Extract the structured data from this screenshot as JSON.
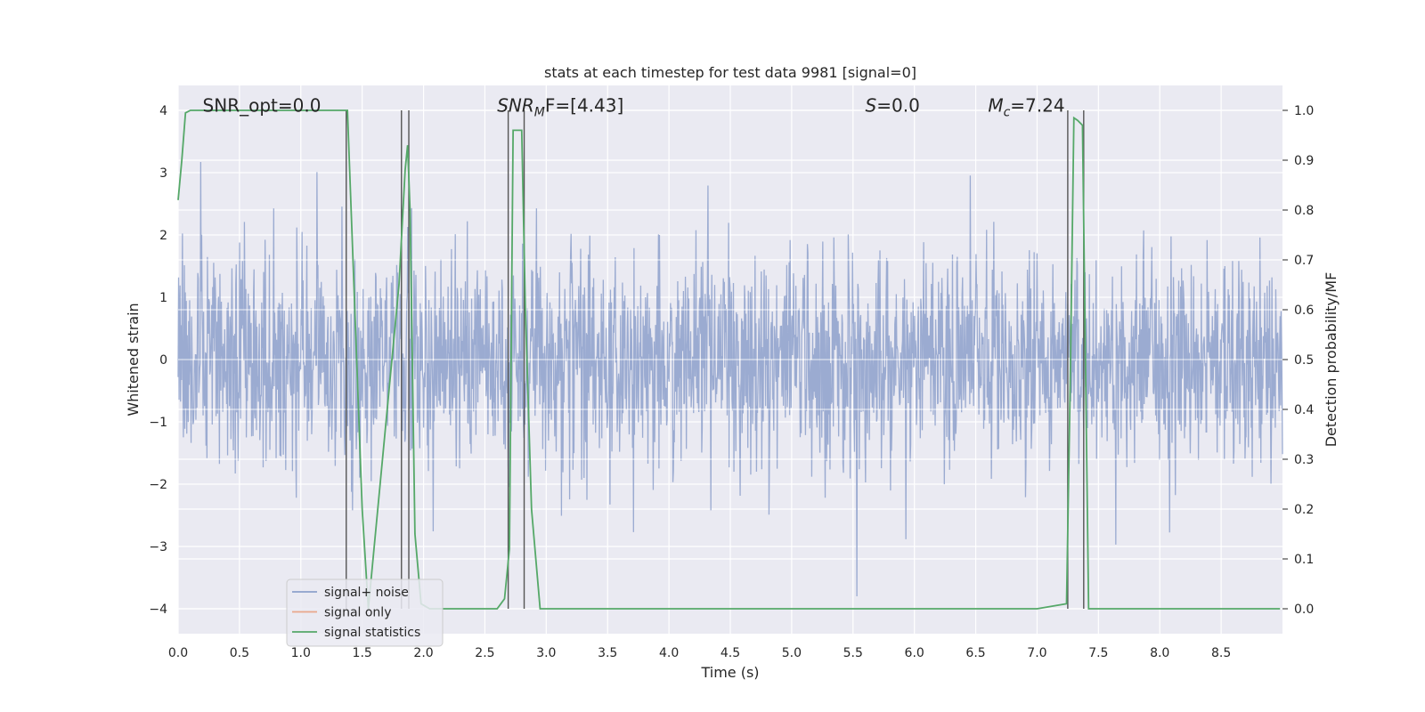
{
  "chart_data": {
    "type": "line",
    "title": "stats at each timestep for test data 9981 [signal=0]",
    "xlabel": "Time (s)",
    "ylabel": "Whitened strain",
    "y2label": "Detection probability/MF",
    "xlim": [
      0,
      9.0
    ],
    "ylim": [
      -4.4,
      4.4
    ],
    "y2lim": [
      -0.05,
      1.05
    ],
    "xticks": [
      "0.0",
      "0.5",
      "1.0",
      "1.5",
      "2.0",
      "2.5",
      "3.0",
      "3.5",
      "4.0",
      "4.5",
      "5.0",
      "5.5",
      "6.0",
      "6.5",
      "7.0",
      "7.5",
      "8.0",
      "8.5"
    ],
    "xtick_values": [
      0,
      0.5,
      1,
      1.5,
      2,
      2.5,
      3,
      3.5,
      4,
      4.5,
      5,
      5.5,
      6,
      6.5,
      7,
      7.5,
      8,
      8.5
    ],
    "yticks": [
      "−4",
      "−3",
      "−2",
      "−1",
      "0",
      "1",
      "2",
      "3",
      "4"
    ],
    "ytick_values": [
      -4,
      -3,
      -2,
      -1,
      0,
      1,
      2,
      3,
      4
    ],
    "y2ticks": [
      "0.0",
      "0.1",
      "0.2",
      "0.3",
      "0.4",
      "0.5",
      "0.6",
      "0.7",
      "0.8",
      "0.9",
      "1.0"
    ],
    "y2tick_values": [
      0,
      0.1,
      0.2,
      0.3,
      0.4,
      0.5,
      0.6,
      0.7,
      0.8,
      0.9,
      1.0
    ],
    "grid": true,
    "legend_position": "lower-left",
    "annotations": [
      {
        "text": "SNR_opt=0.0",
        "x": 0.2,
        "y": 4.05
      },
      {
        "text": "SNR_MF=[4.43]",
        "x": 2.6,
        "y": 4.05,
        "math": "SNR",
        "sub": "M",
        "rest": "F=[4.43]"
      },
      {
        "text": "S=0.0",
        "x": 5.6,
        "y": 4.05,
        "math": "S",
        "rest": "=0.0"
      },
      {
        "text": "M_c=7.24",
        "x": 6.6,
        "y": 4.05,
        "math": "M",
        "sub": "c",
        "rest": "=7.24"
      }
    ],
    "series": [
      {
        "name": "signal+ noise",
        "color": "#8da0cb",
        "kind": "noise",
        "amplitude_std": 0.85,
        "amplitude_max": 3.8
      },
      {
        "name": "signal only",
        "color": "#e9a78a",
        "kind": "flat",
        "values_y": 0
      },
      {
        "name": "signal statistics",
        "color": "#55a868",
        "axis": "right",
        "x": [
          0.0,
          0.03,
          0.06,
          0.1,
          0.2,
          0.4,
          0.8,
          1.2,
          1.36,
          1.38,
          1.5,
          1.55,
          1.8,
          1.85,
          1.87,
          1.89,
          1.93,
          1.98,
          2.05,
          2.6,
          2.66,
          2.7,
          2.73,
          2.8,
          2.83,
          2.88,
          2.95,
          3.5,
          4.5,
          5.5,
          6.5,
          7.0,
          7.24,
          7.27,
          7.3,
          7.33,
          7.37,
          7.42,
          7.5,
          8.0,
          8.5,
          8.98
        ],
        "y": [
          0.82,
          0.9,
          0.995,
          1.0,
          1.0,
          1.0,
          1.0,
          1.0,
          1.0,
          1.0,
          0.2,
          0.0,
          0.65,
          0.88,
          0.93,
          0.8,
          0.15,
          0.01,
          0.0,
          0.0,
          0.02,
          0.12,
          0.96,
          0.96,
          0.6,
          0.2,
          0.0,
          0.0,
          0.0,
          0.0,
          0.0,
          0.0,
          0.01,
          0.45,
          0.985,
          0.98,
          0.97,
          0.0,
          0.0,
          0.0,
          0.0,
          0.0
        ]
      }
    ],
    "vertical_lines_x": [
      1.37,
      1.82,
      1.88,
      2.69,
      2.82,
      7.25,
      7.38
    ]
  }
}
